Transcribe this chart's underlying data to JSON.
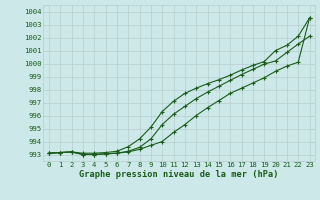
{
  "x": [
    0,
    1,
    2,
    3,
    4,
    5,
    6,
    7,
    8,
    9,
    10,
    11,
    12,
    13,
    14,
    15,
    16,
    17,
    18,
    19,
    20,
    21,
    22,
    23
  ],
  "line1": [
    993.1,
    993.15,
    993.2,
    993.1,
    993.1,
    993.15,
    993.25,
    993.6,
    994.2,
    995.1,
    996.3,
    997.1,
    997.7,
    998.1,
    998.45,
    998.75,
    999.1,
    999.5,
    999.85,
    1000.15,
    1001.0,
    1001.4,
    1002.1,
    1003.5
  ],
  "line2": [
    993.1,
    993.15,
    993.2,
    993.0,
    993.0,
    993.05,
    993.1,
    993.25,
    993.55,
    994.2,
    995.3,
    996.1,
    996.7,
    997.3,
    997.8,
    998.25,
    998.7,
    999.15,
    999.55,
    999.95,
    1000.2,
    1000.85,
    1001.5,
    1002.1
  ],
  "line3": [
    993.1,
    993.15,
    993.2,
    993.0,
    993.0,
    993.05,
    993.1,
    993.2,
    993.4,
    993.7,
    994.0,
    994.7,
    995.3,
    996.0,
    996.6,
    997.15,
    997.7,
    998.1,
    998.5,
    998.9,
    999.4,
    999.8,
    1000.1,
    1003.5
  ],
  "xlabel": "Graphe pression niveau de la mer (hPa)",
  "ylim": [
    992.5,
    1004.5
  ],
  "xlim": [
    -0.5,
    23.5
  ],
  "yticks": [
    993,
    994,
    995,
    996,
    997,
    998,
    999,
    1000,
    1001,
    1002,
    1003,
    1004
  ],
  "xticks": [
    0,
    1,
    2,
    3,
    4,
    5,
    6,
    7,
    8,
    9,
    10,
    11,
    12,
    13,
    14,
    15,
    16,
    17,
    18,
    19,
    20,
    21,
    22,
    23
  ],
  "bg_color": "#cce8e8",
  "grid_color": "#b8cece",
  "line_color": "#1a5c1a",
  "marker": "+",
  "marker_size": 3.0,
  "linewidth": 0.8,
  "tick_fontsize": 5.2,
  "xlabel_fontsize": 6.2
}
